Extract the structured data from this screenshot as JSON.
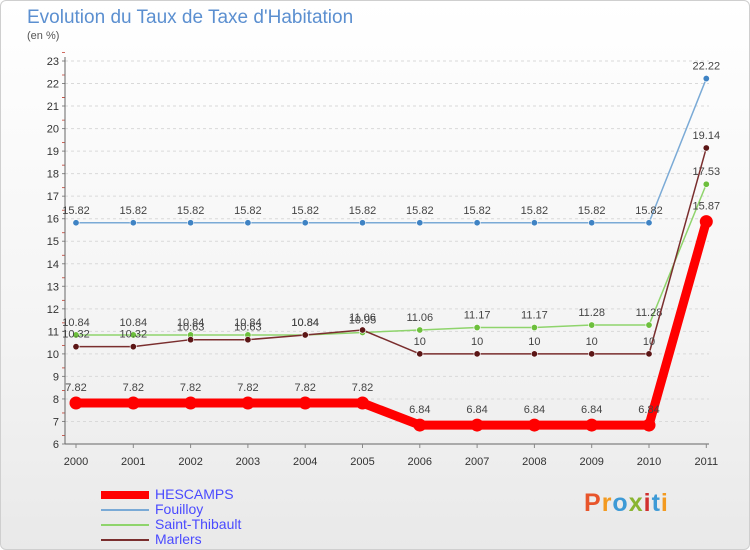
{
  "header": {
    "title": "Evolution du Taux de Taxe d'Habitation",
    "unit": "(en %)"
  },
  "brand": {
    "text": "Proxiti",
    "colors": [
      "#e8552b",
      "#f39a20",
      "#3d9ad6",
      "#8ab531",
      "#d12f2f",
      "#3d9ad6",
      "#f39a20"
    ]
  },
  "chart_data": {
    "type": "line",
    "title": "Evolution du Taux de Taxe d'Habitation",
    "ylabel": "(en %)",
    "xlabel": "",
    "ylim": [
      6,
      23
    ],
    "grid": "horizontal dashed",
    "categories": [
      "2000",
      "2001",
      "2002",
      "2003",
      "2004",
      "2005",
      "2006",
      "2007",
      "2008",
      "2009",
      "2010",
      "2011"
    ],
    "yticks": [
      "6",
      "7",
      "8",
      "9",
      "10",
      "11",
      "12",
      "13",
      "14",
      "15",
      "16",
      "17",
      "18",
      "19",
      "20",
      "21",
      "22",
      "23"
    ],
    "series": [
      {
        "name": "Fouilloy",
        "color": "#7aaad6",
        "marker": "#3f83c4",
        "values": [
          15.82,
          15.82,
          15.82,
          15.82,
          15.82,
          15.82,
          15.82,
          15.82,
          15.82,
          15.82,
          15.82,
          22.22
        ],
        "labels": [
          "15.82",
          "15.82",
          "15.82",
          "15.82",
          "15.82",
          "15.82",
          "15.82",
          "15.82",
          "15.82",
          "15.82",
          "15.82",
          "22.22"
        ]
      },
      {
        "name": "Saint-Thibault",
        "color": "#8fd46c",
        "marker": "#6dbf3c",
        "values": [
          10.84,
          10.84,
          10.84,
          10.84,
          10.84,
          10.95,
          11.06,
          11.17,
          11.17,
          11.28,
          11.28,
          17.53
        ],
        "labels": [
          "10.84",
          "10.84",
          "10.84",
          "10.84",
          "10.84",
          "10.95",
          "11.06",
          "11.17",
          "11.17",
          "11.28",
          "11.28",
          "17.53"
        ]
      },
      {
        "name": "Marlers",
        "color": "#7a2e2e",
        "marker": "#5c1616",
        "values": [
          10.32,
          10.32,
          10.63,
          10.63,
          10.84,
          11.06,
          10,
          10,
          10,
          10,
          10,
          19.14
        ],
        "labels": [
          "10.32",
          "10.32",
          "10.63",
          "10.63",
          "10.84",
          "11.06",
          "10",
          "10",
          "10",
          "10",
          "10",
          "19.14"
        ]
      },
      {
        "name": "HESCAMPS",
        "color": "#ff0000",
        "marker": "#ff0000",
        "values": [
          7.82,
          7.82,
          7.82,
          7.82,
          7.82,
          7.82,
          6.84,
          6.84,
          6.84,
          6.84,
          6.84,
          15.87
        ],
        "labels": [
          "7.82",
          "7.82",
          "7.82",
          "7.82",
          "7.82",
          "7.82",
          "6.84",
          "6.84",
          "6.84",
          "6.84",
          "6.84",
          "15.87"
        ]
      }
    ]
  },
  "legend": [
    {
      "label": "HESCAMPS",
      "color": "#ff0000"
    },
    {
      "label": "Fouilloy",
      "color": "#7aaad6"
    },
    {
      "label": "Saint-Thibault",
      "color": "#8fd46c"
    },
    {
      "label": "Marlers",
      "color": "#7a2e2e"
    }
  ]
}
